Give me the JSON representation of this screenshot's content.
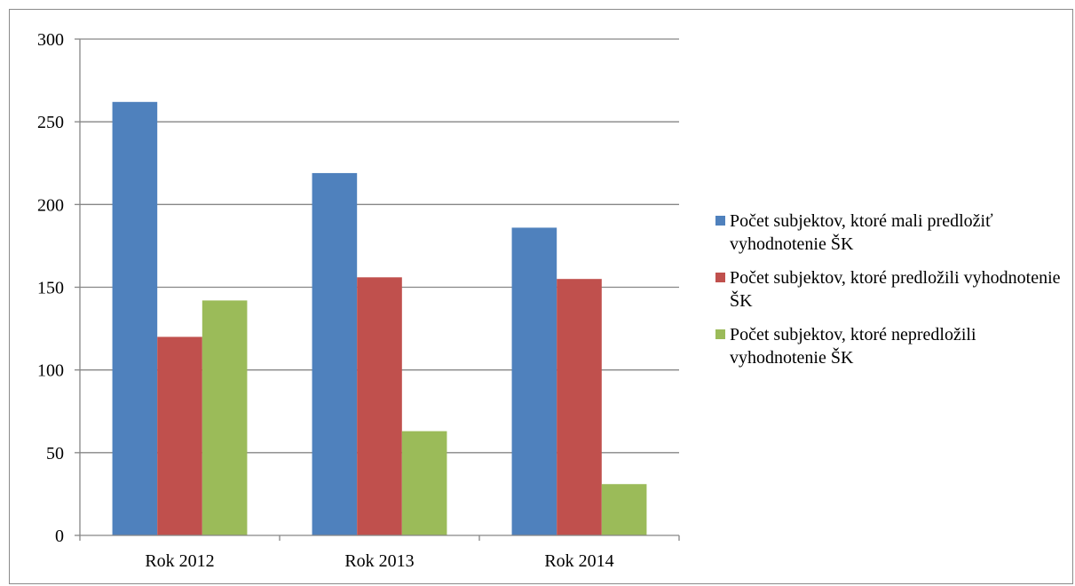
{
  "chart_data": {
    "type": "bar",
    "categories": [
      "Rok 2012",
      "Rok 2013",
      "Rok 2014"
    ],
    "series": [
      {
        "name": "Počet subjektov, ktoré mali predložiť vyhodnotenie ŠK",
        "values": [
          262,
          219,
          186
        ],
        "color": "#4f81bd"
      },
      {
        "name": "Počet subjektov, ktoré predložili vyhodnotenie ŠK",
        "values": [
          120,
          156,
          155
        ],
        "color": "#c0504d"
      },
      {
        "name": "Počet subjektov, ktoré nepredložili vyhodnotenie ŠK",
        "values": [
          142,
          63,
          31
        ],
        "color": "#9bbb59"
      }
    ],
    "ylim": [
      0,
      300
    ],
    "yticks": [
      "0",
      "50",
      "100",
      "150",
      "200",
      "250",
      "300"
    ],
    "grid": true,
    "legend_position": "right",
    "title": "",
    "xlabel": "",
    "ylabel": ""
  }
}
